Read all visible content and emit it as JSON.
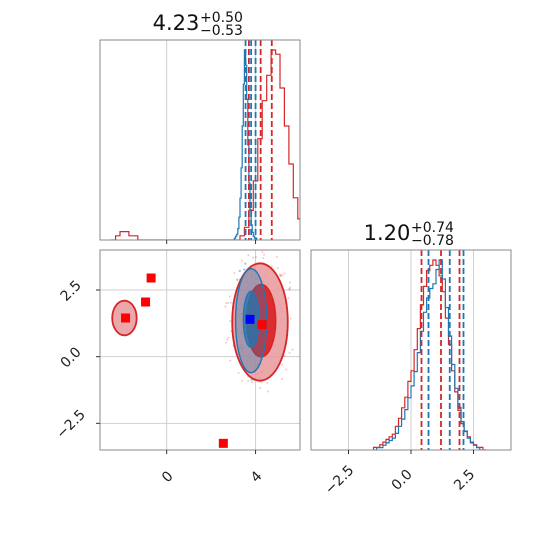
{
  "chart_data": {
    "type": "corner",
    "grid": true,
    "colors": {
      "red": "#d62728",
      "blue": "#1f77b4",
      "red_fill": "#e8989a",
      "red_core": "#dd2c2f",
      "marker_red": "#ff0000",
      "marker_blue": "#0000ff"
    },
    "panels": [
      {
        "id": "top-left",
        "type": "histogram",
        "title": {
          "value": "4.23",
          "plus": "+0.50",
          "minus": "−0.53"
        },
        "xlim": [
          -3.0,
          6.0
        ],
        "series": [
          {
            "name": "red",
            "color": "#d62728",
            "bin_start": -2.5,
            "bin_width": 0.2,
            "counts": [
              0,
              1,
              2,
              2,
              1,
              1,
              0,
              0,
              0,
              0,
              0,
              0,
              0,
              0,
              0,
              0,
              0,
              0,
              0,
              0,
              0,
              0,
              0,
              0,
              0,
              0,
              0,
              0,
              0,
              1,
              3,
              7,
              14,
              24,
              33,
              39,
              45,
              44,
              36,
              27,
              18,
              10,
              5,
              2,
              1,
              1,
              0
            ]
          },
          {
            "name": "blue",
            "color": "#1f77b4",
            "bin_start": 3.0,
            "bin_width": 0.05,
            "counts": [
              0,
              1,
              2,
              3,
              6,
              12,
              22,
              38,
              60,
              82,
              100,
              92,
              74,
              50,
              30,
              16,
              8,
              4,
              2,
              1,
              1,
              0
            ]
          }
        ],
        "quantile_lines": [
          {
            "series": "red",
            "values": [
              3.7,
              4.23,
              4.73
            ]
          },
          {
            "series": "blue",
            "values": [
              3.55,
              3.8,
              4.0
            ]
          }
        ],
        "gridlines_x": [
          0,
          4
        ]
      },
      {
        "id": "bottom-left",
        "type": "contour",
        "xlim": [
          -3.0,
          6.0
        ],
        "ylim": [
          -3.5,
          4.0
        ],
        "xticks": [
          0,
          4
        ],
        "xtick_labels": [
          "0",
          "4"
        ],
        "yticks": [
          2.5,
          0.0,
          -2.5
        ],
        "ytick_labels": [
          "2.5",
          "0.0",
          "−2.5"
        ],
        "gridlines_x": [
          0,
          4
        ],
        "gridlines_y": [
          -2.5,
          0,
          2.5
        ],
        "contours": [
          {
            "series": "red",
            "level": "outer",
            "center": [
              4.2,
              1.3
            ],
            "rx": 1.25,
            "ry": 2.2
          },
          {
            "series": "red",
            "level": "inner",
            "center": [
              4.25,
              1.35
            ],
            "rx": 0.65,
            "ry": 1.35
          },
          {
            "series": "red",
            "level": "outer",
            "center": [
              -1.9,
              1.45
            ],
            "rx": 0.55,
            "ry": 0.65
          },
          {
            "series": "blue",
            "level": "outer",
            "center": [
              3.8,
              1.35
            ],
            "rx": 0.7,
            "ry": 1.95
          },
          {
            "series": "blue",
            "level": "inner",
            "center": [
              3.8,
              1.4
            ],
            "rx": 0.35,
            "ry": 1.05
          }
        ],
        "markers": [
          {
            "color": "#ff0000",
            "x": -0.7,
            "y": 2.95
          },
          {
            "color": "#ff0000",
            "x": -0.95,
            "y": 2.05
          },
          {
            "color": "#ff0000",
            "x": -1.85,
            "y": 1.45
          },
          {
            "color": "#ff0000",
            "x": 2.55,
            "y": -3.25
          },
          {
            "color": "#ff0000",
            "x": 4.3,
            "y": 1.2
          },
          {
            "color": "#0000ff",
            "x": 3.75,
            "y": 1.4
          }
        ]
      },
      {
        "id": "bottom-right",
        "type": "histogram",
        "title": {
          "value": "1.20",
          "plus": "+0.74",
          "minus": "−0.78"
        },
        "xlim": [
          -4.0,
          4.0
        ],
        "xticks": [
          -2.5,
          0.0,
          2.5
        ],
        "xtick_labels": [
          "−2.5",
          "0.0",
          "2.5"
        ],
        "gridlines_x": [
          -2.5,
          0,
          2.5
        ],
        "series": [
          {
            "name": "red",
            "color": "#d62728",
            "bin_start": -1.5,
            "bin_width": 0.125,
            "counts": [
              1,
              1,
              2,
              3,
              4,
              5,
              6,
              9,
              12,
              16,
              20,
              26,
              30,
              38,
              46,
              55,
              62,
              68,
              70,
              72,
              70,
              66,
              60,
              50,
              40,
              30,
              22,
              15,
              10,
              7,
              5,
              3,
              2,
              1,
              1,
              0
            ]
          },
          {
            "name": "blue",
            "color": "#1f77b4",
            "bin_start": -1.5,
            "bin_width": 0.125,
            "counts": [
              0,
              1,
              1,
              2,
              3,
              4,
              5,
              7,
              10,
              13,
              17,
              22,
              27,
              33,
              41,
              50,
              58,
              64,
              68,
              70,
              76,
              80,
              72,
              60,
              48,
              36,
              26,
              18,
              12,
              8,
              5,
              3,
              2,
              1,
              0,
              0
            ]
          }
        ],
        "quantile_lines": [
          {
            "series": "red",
            "values": [
              0.42,
              1.2,
              1.94
            ]
          },
          {
            "series": "blue",
            "values": [
              0.7,
              1.55,
              2.1
            ]
          }
        ]
      }
    ]
  }
}
